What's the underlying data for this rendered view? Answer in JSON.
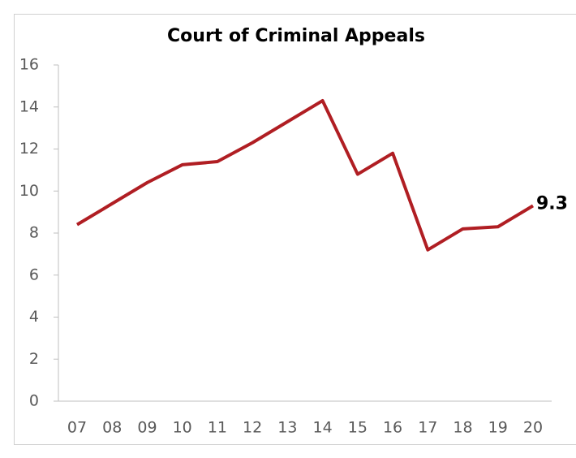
{
  "chart_data": {
    "type": "line",
    "title": "Court of Criminal Appeals",
    "categories": [
      "07",
      "08",
      "09",
      "10",
      "11",
      "12",
      "13",
      "14",
      "15",
      "16",
      "17",
      "18",
      "19",
      "20"
    ],
    "series": [
      {
        "name": "Court of Criminal Appeals",
        "color": "#b01e23",
        "values": [
          8.4,
          9.4,
          10.4,
          11.25,
          11.4,
          12.3,
          13.3,
          14.3,
          10.8,
          11.8,
          7.2,
          8.2,
          8.3,
          9.3
        ]
      }
    ],
    "ylim": [
      0,
      16
    ],
    "yticks": [
      0,
      2,
      4,
      6,
      8,
      10,
      12,
      14,
      16
    ],
    "grid": false,
    "data_labels": "last"
  }
}
